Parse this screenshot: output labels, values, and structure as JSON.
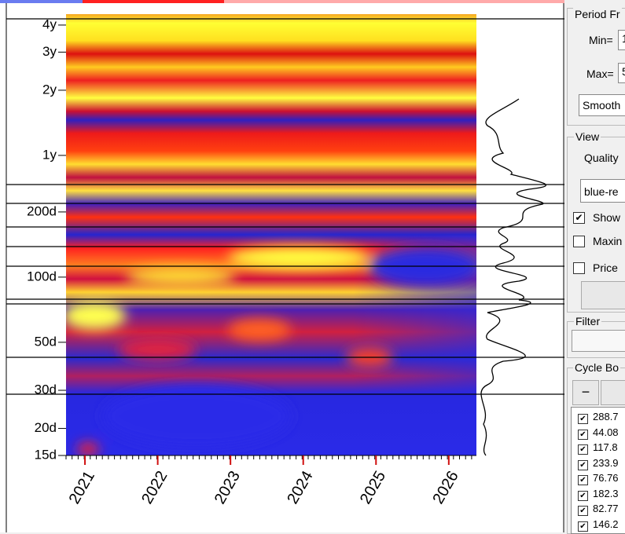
{
  "chart_data": {
    "type": "heatmap",
    "x": [],
    "xlim": [
      2020.74,
      2026.38
    ],
    "xticks": [
      2021,
      2022,
      2023,
      2024,
      2025,
      2026
    ],
    "ylim": [
      15,
      1640
    ],
    "log_y": true,
    "yticks": [
      {
        "value": 1460,
        "label": "4y"
      },
      {
        "value": 1095,
        "label": "3y"
      },
      {
        "value": 730,
        "label": "2y"
      },
      {
        "value": 365,
        "label": "1y"
      },
      {
        "value": 200,
        "label": "200d"
      },
      {
        "value": 100,
        "label": "100d"
      },
      {
        "value": 50,
        "label": "50d"
      },
      {
        "value": 30,
        "label": "30d"
      },
      {
        "value": 20,
        "label": "20d"
      },
      {
        "value": 15,
        "label": "15d"
      }
    ]
  },
  "panel": {
    "period": {
      "title": "Period Fr",
      "min_label": "Min=",
      "min_value": "1",
      "max_label": "Max=",
      "max_value": "5",
      "smooth": "Smooth"
    },
    "view": {
      "title": "View",
      "quality": "Quality",
      "palette": "blue-re",
      "show": "Show",
      "maximize": "Maxin",
      "price": "Price"
    },
    "filter": {
      "title": "Filter"
    },
    "cycles": {
      "title": "Cycle Bo",
      "remove": "−",
      "items": [
        "288.7",
        "44.08",
        "117.8",
        "233.9",
        "76.76",
        "182.3",
        "82.77",
        "146.2"
      ]
    }
  }
}
